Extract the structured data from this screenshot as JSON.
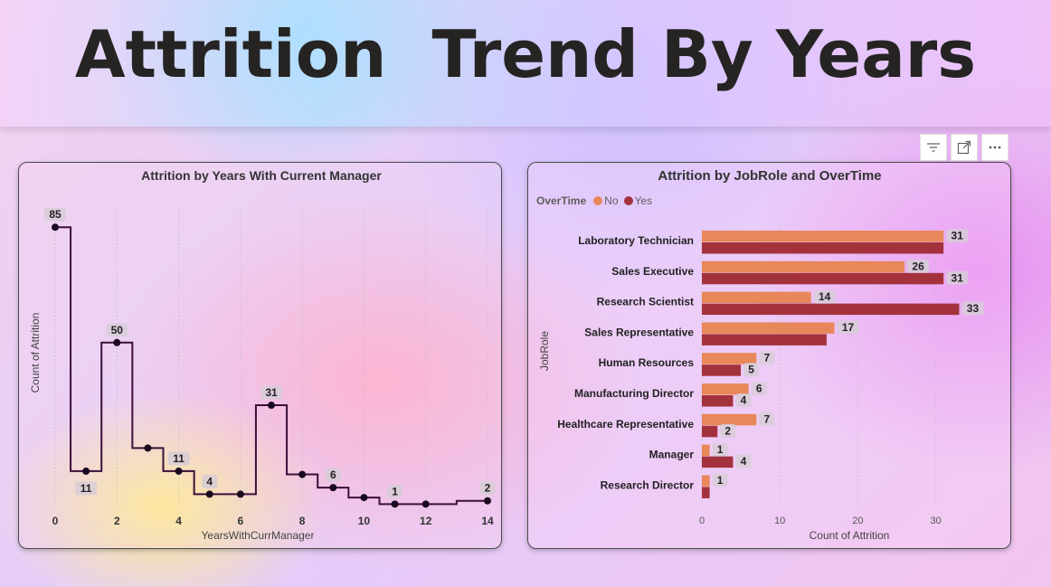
{
  "page_title": "Attrition  Trend By Years",
  "toolbar": {
    "icons": [
      "filter-icon",
      "focus-mode-icon",
      "more-options-icon"
    ]
  },
  "chart_data": [
    {
      "type": "line",
      "title": "Attrition by Years With Current Manager",
      "xlabel": "YearsWithCurrManager",
      "ylabel": "Count of Attrition",
      "line_shape": "step",
      "line_color": "#3b0f3a",
      "x": [
        0,
        1,
        2,
        3,
        4,
        5,
        6,
        7,
        8,
        9,
        10,
        11,
        12,
        14
      ],
      "y": [
        85,
        11,
        50,
        18,
        11,
        4,
        4,
        31,
        10,
        6,
        3,
        1,
        1,
        2
      ],
      "data_labels": [
        {
          "x": 0,
          "label": "85"
        },
        {
          "x": 1,
          "label": "11"
        },
        {
          "x": 2,
          "label": "50"
        },
        {
          "x": 4,
          "label": "11"
        },
        {
          "x": 5,
          "label": "4"
        },
        {
          "x": 7,
          "label": "31"
        },
        {
          "x": 9,
          "label": "6"
        },
        {
          "x": 11,
          "label": "1"
        },
        {
          "x": 14,
          "label": "2"
        }
      ],
      "xticks": [
        "0",
        "2",
        "4",
        "6",
        "8",
        "10",
        "12",
        "14"
      ],
      "xlim": [
        0,
        14
      ],
      "ylim": [
        0,
        90
      ],
      "grid": "vertical dotted"
    },
    {
      "type": "bar",
      "orientation": "horizontal",
      "title": "Attrition by JobRole and OverTime",
      "xlabel": "Count of Attrition",
      "ylabel": "JobRole",
      "legend_title": "OverTime",
      "legend_position": "top-left",
      "categories": [
        "Laboratory Technician",
        "Sales Executive",
        "Research Scientist",
        "Sales Representative",
        "Human Resources",
        "Manufacturing Director",
        "Healthcare Representative",
        "Manager",
        "Research Director"
      ],
      "series": [
        {
          "name": "No",
          "color": "#e8875a",
          "values": [
            31,
            26,
            14,
            17,
            7,
            6,
            7,
            1,
            1
          ]
        },
        {
          "name": "Yes",
          "color": "#a3323d",
          "values": [
            31,
            31,
            33,
            16,
            5,
            4,
            2,
            4,
            1
          ]
        }
      ],
      "data_labels": {
        "No": [
          "31",
          "26",
          "14",
          "17",
          "7",
          "6",
          "7",
          "1",
          "1"
        ],
        "Yes": [
          "",
          "31",
          "33",
          "",
          "5",
          "4",
          "2",
          "4",
          ""
        ]
      },
      "xticks": [
        "0",
        "10",
        "20",
        "30"
      ],
      "xlim": [
        0,
        35.5
      ],
      "grid": "vertical dotted"
    }
  ]
}
